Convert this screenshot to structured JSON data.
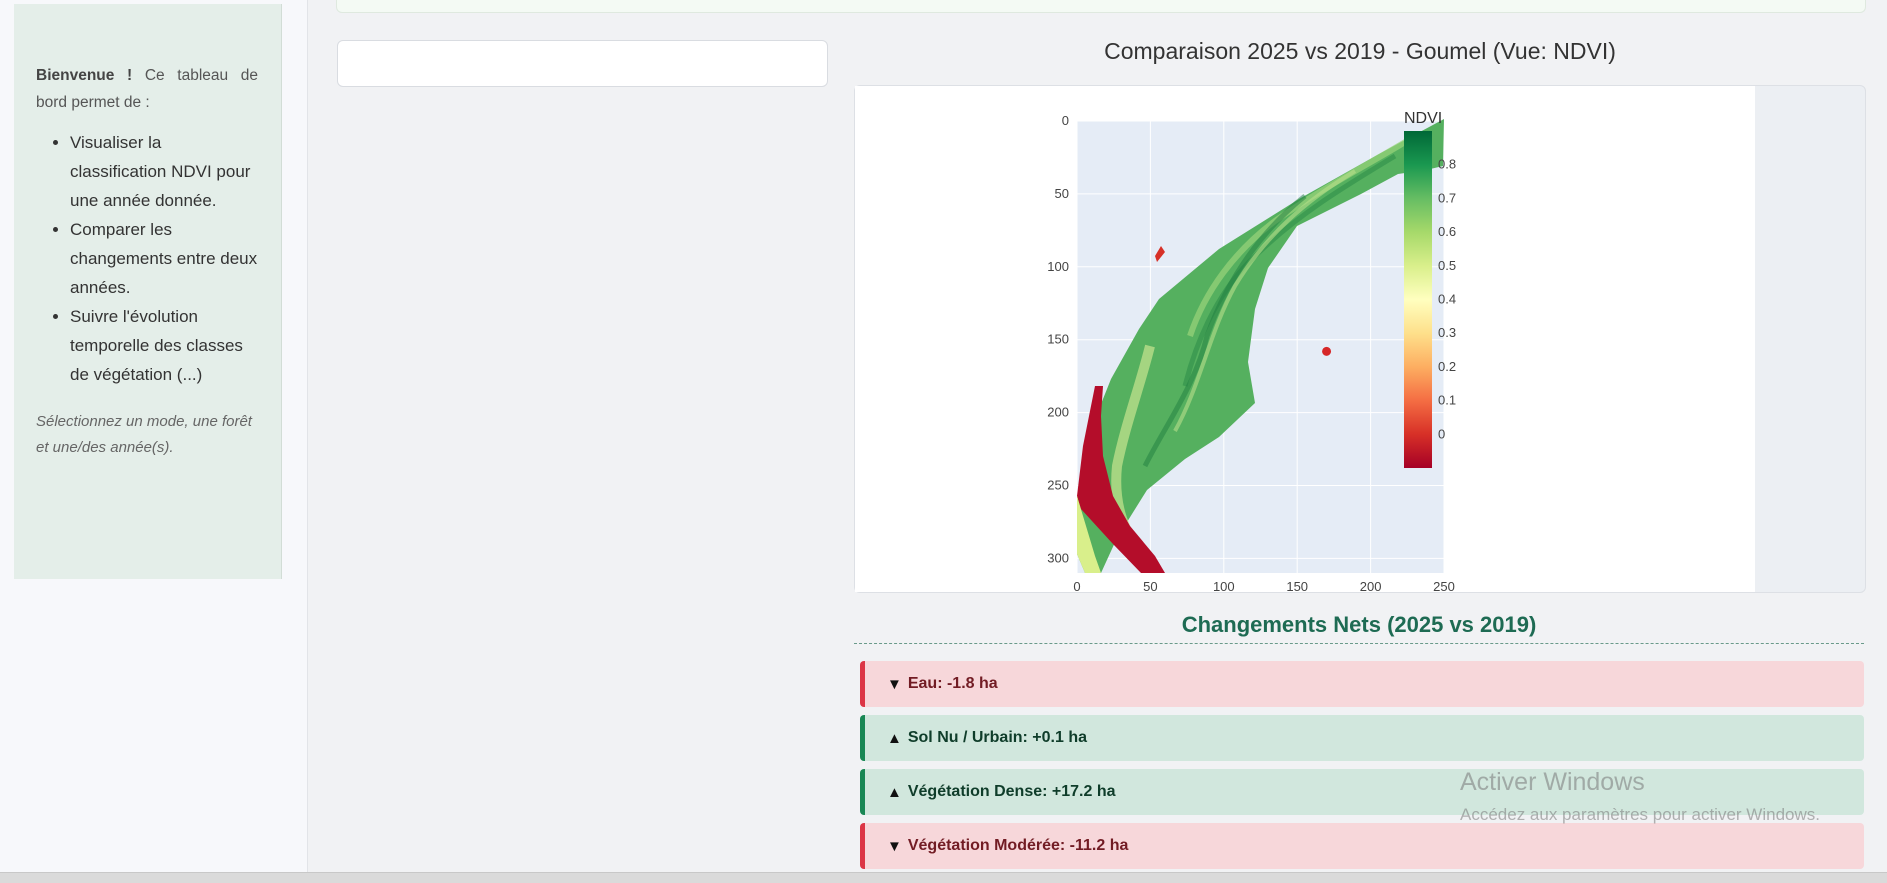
{
  "sidebar": {
    "welcome_bold": "Bienvenue !",
    "welcome_text": " Ce tableau de bord permet de :",
    "features": [
      "Visualiser la classification NDVI pour une année donnée.",
      "Comparer les changements entre deux années.",
      "Suivre l'évolution temporelle des classes de végétation (...)"
    ],
    "hint": "Sélectionnez un mode, une forêt et une/des année(s)."
  },
  "chart": {
    "title": "Comparaison 2025 vs 2019 - Goumel (Vue: NDVI)",
    "colorbar_title": "NDVI",
    "colorscale": "RdYlGn",
    "point_color": "#d62728"
  },
  "chart_data": {
    "type": "heatmap",
    "title": "Comparaison 2025 vs 2019 - Goumel (Vue: NDVI)",
    "x_ticks": [
      "0",
      "50",
      "100",
      "150",
      "200",
      "250"
    ],
    "y_ticks": [
      "0",
      "50",
      "100",
      "150",
      "200",
      "250",
      "300"
    ],
    "xlim": [
      0,
      250
    ],
    "ylim": [
      0,
      310
    ],
    "y_reversed": true,
    "colorbar": {
      "title": "NDVI",
      "ticks": [
        "0",
        "0.1",
        "0.2",
        "0.3",
        "0.4",
        "0.5",
        "0.6",
        "0.7",
        "0.8"
      ],
      "range": [
        -0.1,
        0.9
      ]
    },
    "marker_point": {
      "x": 170,
      "y": 158
    },
    "grid": true
  },
  "changes": {
    "title": "Changements Nets (2025 vs 2019)",
    "items": [
      {
        "label": "Eau: -1.8 ha",
        "direction": "down",
        "arrow": "▼"
      },
      {
        "label": "Sol Nu / Urbain: +0.1 ha",
        "direction": "up",
        "arrow": "▲"
      },
      {
        "label": "Végétation Dense: +17.2 ha",
        "direction": "up",
        "arrow": "▲"
      },
      {
        "label": "Végétation Modérée: -11.2 ha",
        "direction": "down",
        "arrow": "▼"
      }
    ]
  },
  "watermark": {
    "title": "Activer Windows",
    "subtitle": "Accédez aux paramètres pour activer Windows."
  }
}
